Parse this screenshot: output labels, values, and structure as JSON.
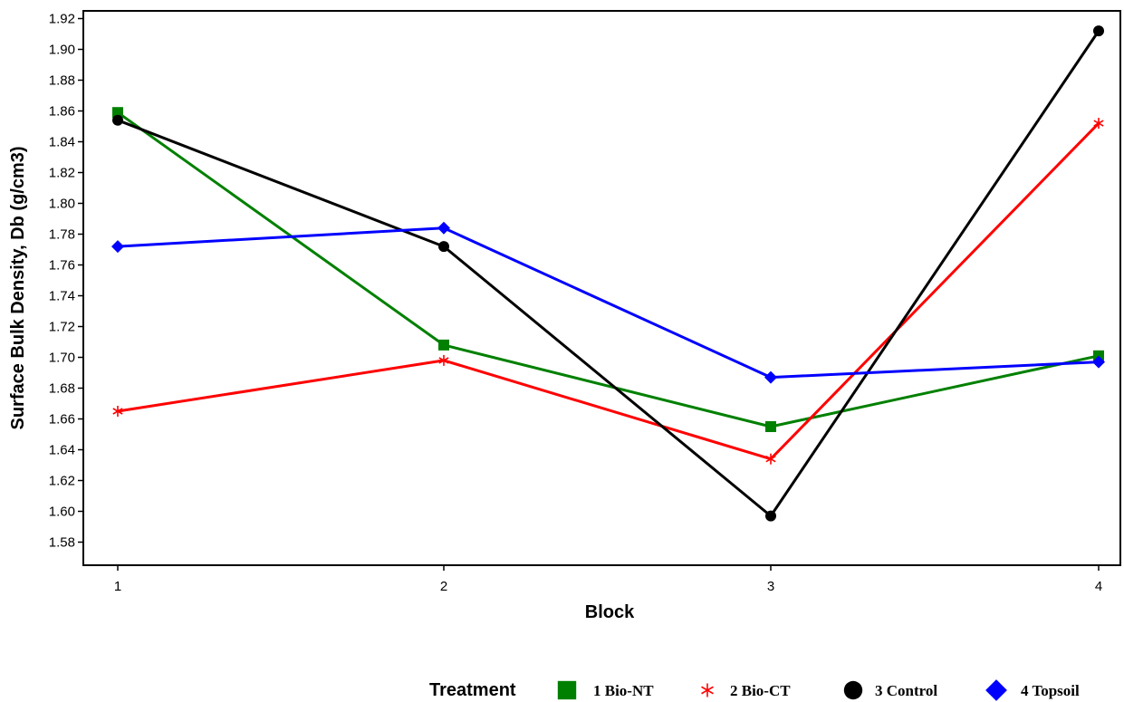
{
  "chart_data": {
    "type": "line",
    "xlabel": "Block",
    "ylabel": "Surface Bulk Density, Db (g/cm3)",
    "x": [
      1,
      2,
      3,
      4
    ],
    "x_ticks": [
      "1",
      "2",
      "3",
      "4"
    ],
    "ylim": [
      1.565,
      1.925
    ],
    "y_ticks": [
      "1.58",
      "1.60",
      "1.62",
      "1.64",
      "1.66",
      "1.68",
      "1.70",
      "1.72",
      "1.74",
      "1.76",
      "1.78",
      "1.80",
      "1.82",
      "1.84",
      "1.86",
      "1.88",
      "1.90",
      "1.92"
    ],
    "grid": false,
    "legend_placement": "bottom-right",
    "legend_title": "Treatment",
    "series": [
      {
        "name": "1 Bio-NT",
        "marker": "square",
        "color": "#008000",
        "values": [
          1.859,
          1.708,
          1.655,
          1.701
        ]
      },
      {
        "name": "2 Bio-CT",
        "marker": "star",
        "color": "#ff0000",
        "values": [
          1.665,
          1.698,
          1.634,
          1.852
        ]
      },
      {
        "name": "3 Control",
        "marker": "circle",
        "color": "#000000",
        "values": [
          1.854,
          1.772,
          1.597,
          1.912
        ]
      },
      {
        "name": "4 Topsoil",
        "marker": "diamond",
        "color": "#0000ff",
        "values": [
          1.772,
          1.784,
          1.687,
          1.697
        ]
      }
    ]
  }
}
